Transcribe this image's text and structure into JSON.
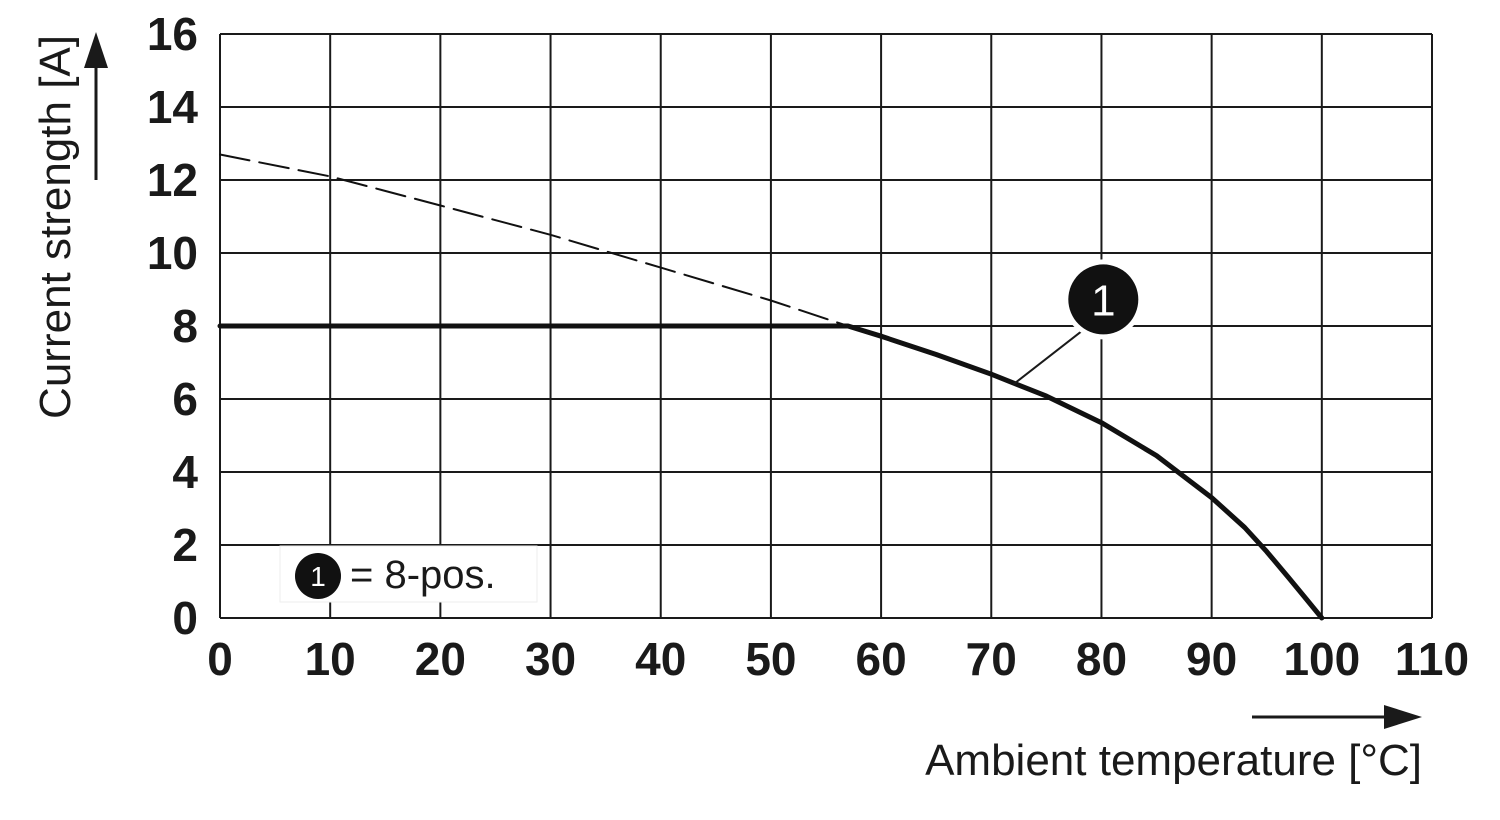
{
  "chart_data": {
    "type": "line",
    "xlabel": "Ambient temperature [°C]",
    "ylabel": "Current strength [A]",
    "xlim": [
      0,
      110
    ],
    "ylim": [
      0,
      16
    ],
    "x_ticks": [
      0,
      10,
      20,
      30,
      40,
      50,
      60,
      70,
      80,
      90,
      100,
      110
    ],
    "y_ticks": [
      0,
      2,
      4,
      6,
      8,
      10,
      12,
      14,
      16
    ],
    "grid": true,
    "series": [
      {
        "style": "solid-bold",
        "points": [
          [
            0,
            8
          ],
          [
            57,
            8
          ],
          [
            60,
            7.72
          ],
          [
            65,
            7.22
          ],
          [
            70,
            6.68
          ],
          [
            75,
            6.08
          ],
          [
            80,
            5.35
          ],
          [
            85,
            4.45
          ],
          [
            90,
            3.3
          ],
          [
            93,
            2.48
          ],
          [
            95,
            1.82
          ],
          [
            97,
            1.1
          ],
          [
            98.5,
            0.55
          ],
          [
            100,
            0
          ]
        ]
      },
      {
        "style": "dashed",
        "points": [
          [
            0,
            12.7
          ],
          [
            10,
            12.1
          ],
          [
            20,
            11.3
          ],
          [
            30,
            10.5
          ],
          [
            40,
            9.6
          ],
          [
            50,
            8.7
          ],
          [
            57,
            8
          ]
        ]
      }
    ],
    "annotations": [
      {
        "label": "1",
        "points_to": [
          72,
          6.4
        ]
      }
    ],
    "legend": {
      "marker": "1",
      "text": "= 8-pos.",
      "placement": "bottom-left"
    }
  }
}
